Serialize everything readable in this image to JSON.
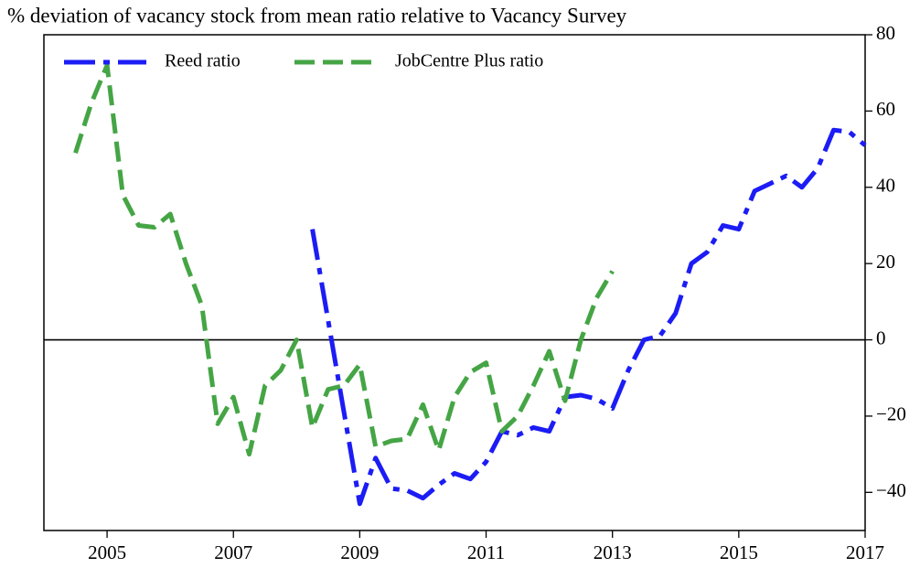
{
  "chart_data": {
    "type": "line",
    "title": "% deviation of vacancy stock from mean ratio relative to Vacancy Survey",
    "xlim": [
      2004,
      2017
    ],
    "xticks": [
      2005,
      2007,
      2009,
      2011,
      2013,
      2015,
      2017
    ],
    "ylim": [
      -50,
      80
    ],
    "yticks": [
      {
        "value": -40,
        "label": "−40"
      },
      {
        "value": -20,
        "label": "−20"
      },
      0,
      20,
      40,
      60,
      80
    ],
    "y_axis_side": "right",
    "hline": 0,
    "legend": "upper left",
    "series": [
      {
        "name": "Reed ratio",
        "color": "#1c1cf5",
        "style": "dashdot",
        "x": [
          2008.25,
          2009.0,
          2009.25,
          2009.5,
          2009.75,
          2010.0,
          2010.25,
          2010.5,
          2010.75,
          2011.0,
          2011.25,
          2011.5,
          2011.75,
          2012.0,
          2012.25,
          2012.5,
          2012.75,
          2013.0,
          2013.25,
          2013.5,
          2013.75,
          2014.0,
          2014.25,
          2014.5,
          2014.75,
          2015.0,
          2015.25,
          2015.5,
          2015.75,
          2016.0,
          2016.25,
          2016.5,
          2016.75,
          2017.0
        ],
        "values": [
          29,
          -43,
          -31,
          -39,
          -39.5,
          -41.5,
          -38,
          -35,
          -36.5,
          -32,
          -24,
          -25,
          -23,
          -24,
          -15,
          -14.5,
          -15.5,
          -18,
          -8,
          0,
          1,
          7,
          20,
          23,
          30,
          29,
          39,
          41,
          43,
          40,
          45,
          55,
          54.5,
          51
        ]
      },
      {
        "name": "JobCentre Plus ratio",
        "color": "#45a545",
        "style": "dashed",
        "x": [
          2004.5,
          2004.75,
          2005.0,
          2005.25,
          2005.5,
          2005.75,
          2006.0,
          2006.25,
          2006.5,
          2006.75,
          2007.0,
          2007.25,
          2007.5,
          2007.75,
          2008.0,
          2008.25,
          2008.5,
          2008.75,
          2009.0,
          2009.25,
          2009.5,
          2009.75,
          2010.0,
          2010.25,
          2010.5,
          2010.75,
          2011.0,
          2011.25,
          2011.5,
          2011.75,
          2012.0,
          2012.25,
          2012.5,
          2012.75,
          2013.0
        ],
        "values": [
          49,
          62,
          72,
          38,
          30,
          29.5,
          33,
          20,
          9,
          -22,
          -15,
          -30,
          -12,
          -8,
          0,
          -23,
          -13,
          -12,
          -6.5,
          -28,
          -26.5,
          -26,
          -17,
          -29,
          -15,
          -8.5,
          -6,
          -24,
          -20,
          -12,
          -3,
          -16,
          0,
          11,
          18
        ]
      }
    ]
  }
}
